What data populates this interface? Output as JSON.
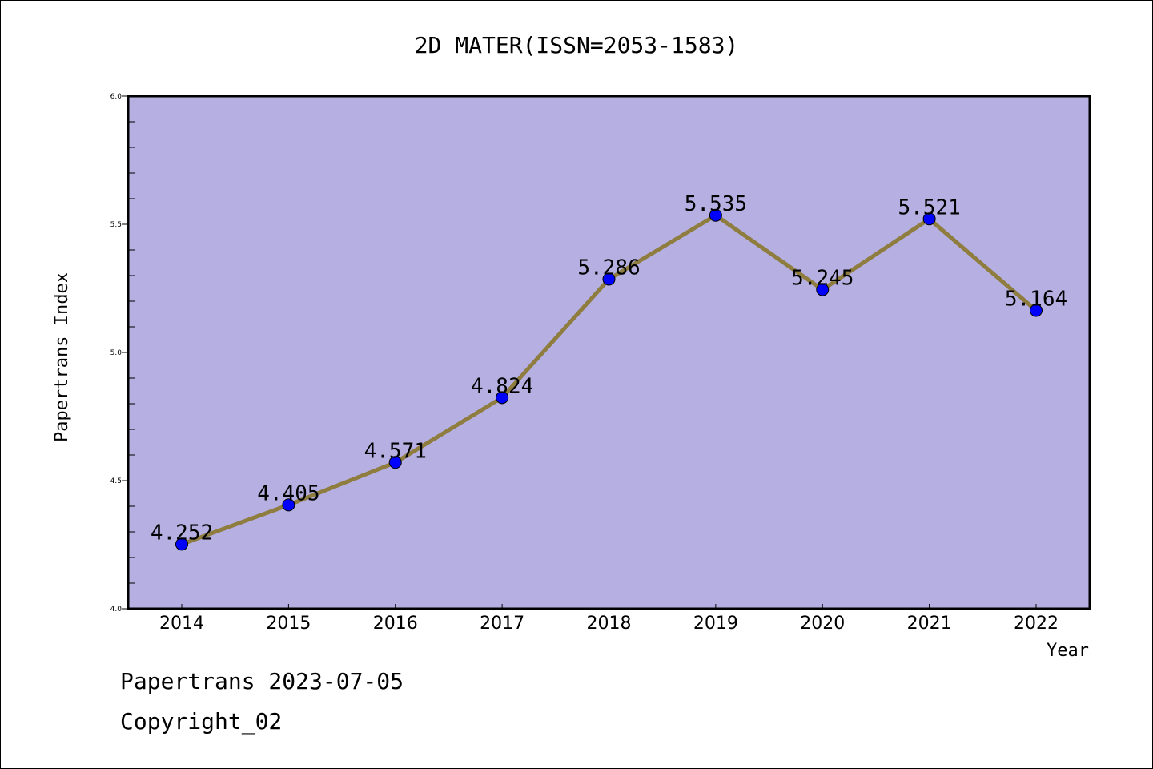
{
  "chart_data": {
    "type": "line",
    "title": "2D MATER(ISSN=2053-1583)",
    "xlabel": "Year",
    "ylabel": "Papertrans Index",
    "categories": [
      "2014",
      "2015",
      "2016",
      "2017",
      "2018",
      "2019",
      "2020",
      "2021",
      "2022"
    ],
    "values": [
      4.252,
      4.405,
      4.571,
      4.824,
      5.286,
      5.535,
      5.245,
      5.521,
      5.164
    ],
    "value_labels": [
      "4.252",
      "4.405",
      "4.571",
      "4.824",
      "5.286",
      "5.535",
      "5.245",
      "5.521",
      "5.164"
    ],
    "ylim": [
      4.0,
      6.0
    ],
    "yticks": [
      "4.0",
      "4.5",
      "5.0",
      "5.5",
      "6.0"
    ],
    "grid": false,
    "colors": {
      "background": "#b5afe2",
      "line": "#8e7d3e",
      "marker": "#0000ff"
    }
  },
  "footer": {
    "line1": "Papertrans 2023-07-05",
    "line2": "Copyright_02"
  }
}
